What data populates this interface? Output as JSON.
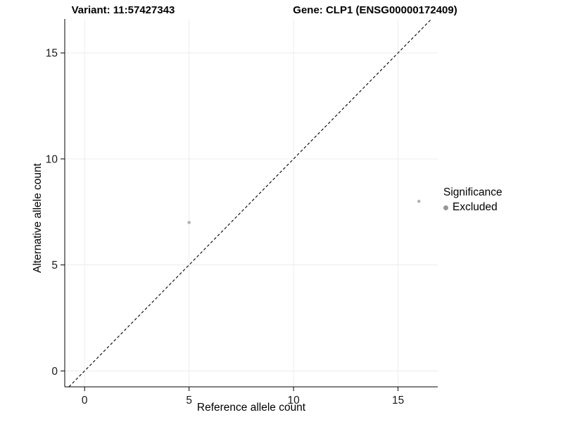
{
  "page": {
    "background": "#ffffff"
  },
  "chart_data": {
    "type": "scatter",
    "title_left": "Variant: 11:57427343",
    "title_right": "Gene: CLP1 (ENSG00000172409)",
    "xlabel": "Reference allele count",
    "ylabel": "Alternative allele count",
    "xlim": [
      -0.95,
      16.9
    ],
    "ylim": [
      -0.75,
      16.6
    ],
    "xticks": [
      0,
      5,
      10,
      15
    ],
    "yticks": [
      0,
      5,
      10,
      15
    ],
    "grid": true,
    "grid_color": "#ececec",
    "axis_color": "#000000",
    "identity_line": {
      "type": "dashed",
      "color": "#000000",
      "equation": "y = x"
    },
    "series": [
      {
        "name": "Excluded",
        "color": "#b3b3b3",
        "points": [
          {
            "x": 5,
            "y": 7
          },
          {
            "x": 16,
            "y": 8
          }
        ]
      }
    ],
    "legend": {
      "title": "Significance",
      "position": "right",
      "items": [
        {
          "label": "Excluded",
          "color": "#969696"
        }
      ]
    }
  }
}
